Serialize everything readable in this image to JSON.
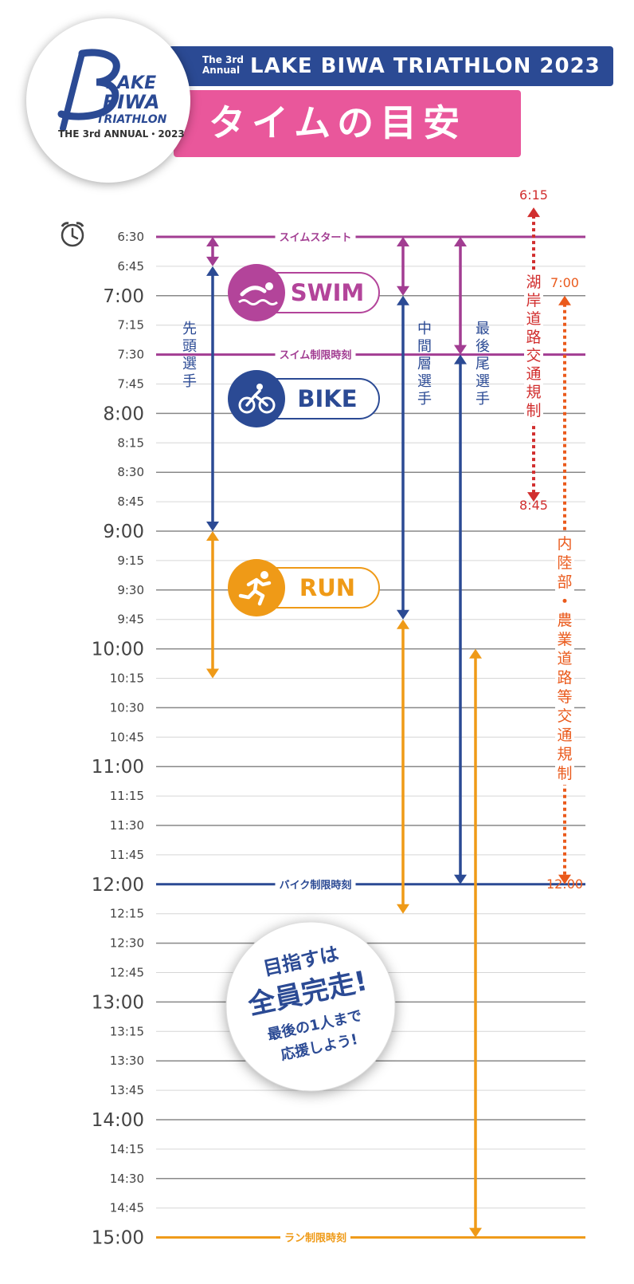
{
  "header": {
    "logo_line1": "LAKE",
    "logo_line2": "BIWA",
    "logo_line3": "TRIATHLON",
    "logo_line4": "THE 3rd ANNUAL・2023",
    "annual_small_1": "The 3rd",
    "annual_small_2": "Annual",
    "event_title": "LAKE BIWA TRIATHLON 2023",
    "page_title": "タイムの目安"
  },
  "timeline": {
    "times": [
      "6:30",
      "6:45",
      "7:00",
      "7:15",
      "7:30",
      "7:45",
      "8:00",
      "8:15",
      "8:30",
      "8:45",
      "9:00",
      "9:15",
      "9:30",
      "9:45",
      "10:00",
      "10:15",
      "10:30",
      "10:45",
      "11:00",
      "11:15",
      "11:30",
      "11:45",
      "12:00",
      "12:15",
      "12:30",
      "12:45",
      "13:00",
      "13:15",
      "13:30",
      "13:45",
      "14:00",
      "14:15",
      "14:30",
      "14:45",
      "15:00"
    ],
    "marker_swim_start": "スイムスタート",
    "marker_swim_limit": "スイム制限時刻",
    "marker_bike_limit": "バイク制限時刻",
    "marker_run_limit": "ラン制限時刻"
  },
  "stages": {
    "swim": "SWIM",
    "bike": "BIKE",
    "run": "RUN"
  },
  "groups": {
    "leading": "先頭選手",
    "middle": "中間層選手",
    "last": "最後尾選手"
  },
  "traffic": {
    "lake_label": "湖岸道路交通規制",
    "lake_start": "6:15",
    "lake_end": "8:45",
    "inland_label": "内陸部・農業道路等交通規制",
    "inland_start": "7:00",
    "inland_end": "12:00"
  },
  "message": {
    "line1": "目指すは",
    "line2": "全員完走!",
    "line3": "最後の1人まで",
    "line4": "応援しよう!"
  },
  "colors": {
    "purple": "#a23d92",
    "blue": "#2b4a94",
    "orange": "#ef9a17",
    "red": "#d12e2e",
    "orange_red": "#ea5a1c",
    "pink": "#e9579b",
    "swim_icon": "#b3449a"
  }
}
